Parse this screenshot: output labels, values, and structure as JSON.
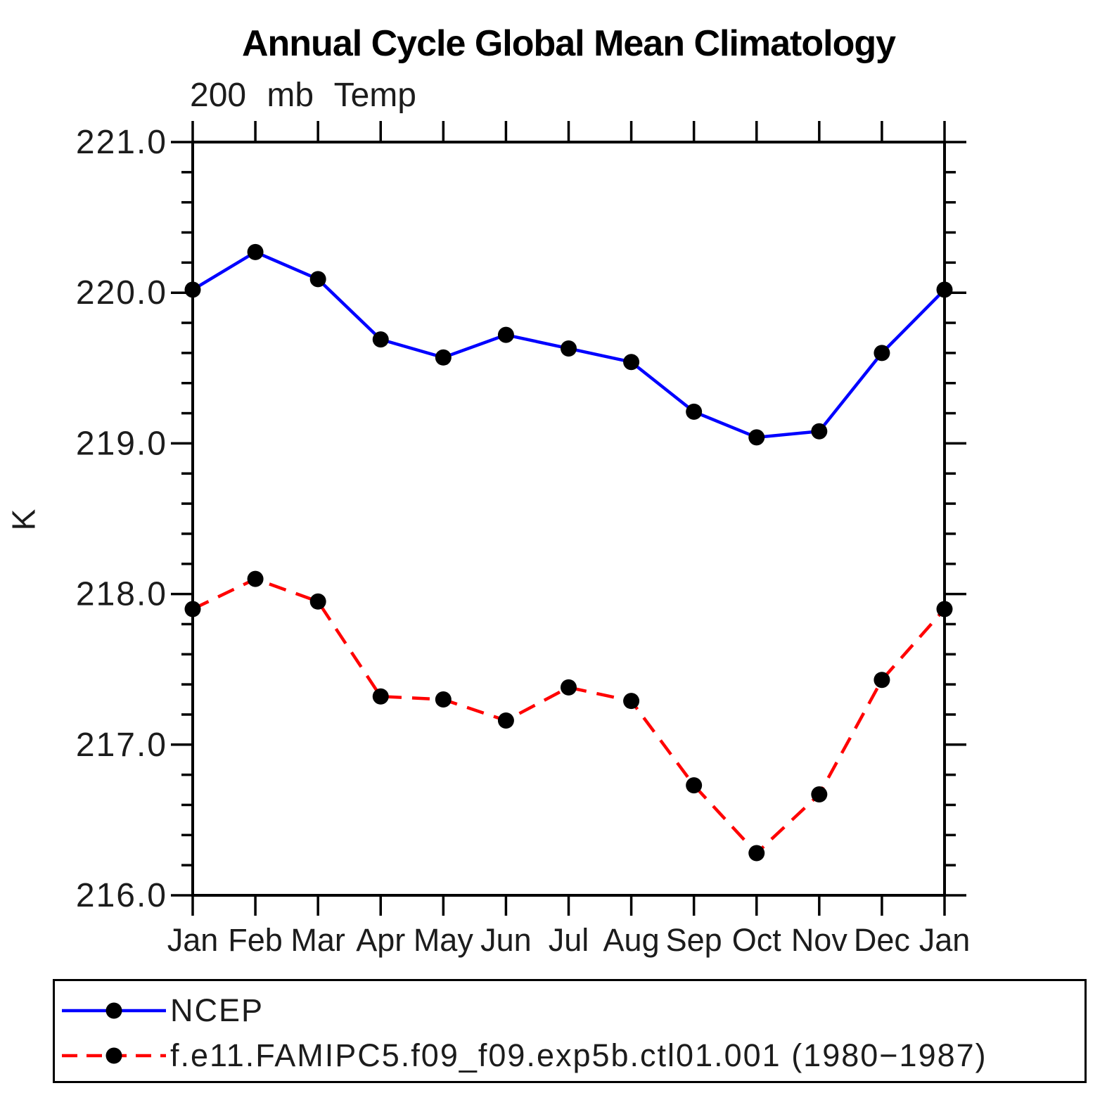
{
  "chart_data": {
    "type": "line",
    "title": "Annual Cycle Global Mean Climatology",
    "subtitle": "200 mb Temp",
    "ylabel": "K",
    "xlabel": "",
    "categories": [
      "Jan",
      "Feb",
      "Mar",
      "Apr",
      "May",
      "Jun",
      "Jul",
      "Aug",
      "Sep",
      "Oct",
      "Nov",
      "Dec",
      "Jan"
    ],
    "ylim": [
      216.0,
      221.0
    ],
    "y_major_ticks": [
      221.0,
      220.0,
      219.0,
      218.0,
      217.0,
      216.0
    ],
    "y_tick_labels": [
      "221.0",
      "220.0",
      "219.0",
      "218.0",
      "217.0",
      "216.0"
    ],
    "y_minor_interval": 0.2,
    "grid": false,
    "legend_position": "bottom",
    "marker": "circle",
    "marker_color": "#000000",
    "axis_color": "#000000",
    "series": [
      {
        "name": "NCEP",
        "color": "#0000ff",
        "line_style": "solid",
        "values": [
          220.02,
          220.27,
          220.09,
          219.69,
          219.57,
          219.72,
          219.63,
          219.54,
          219.21,
          219.04,
          219.08,
          219.6,
          220.02
        ]
      },
      {
        "name": "f.e11.FAMIPC5.f09_f09.exp5b.ctl01.001 (1980−1987)",
        "color": "#ff0000",
        "line_style": "dashed",
        "values": [
          217.9,
          218.1,
          217.95,
          217.32,
          217.3,
          217.16,
          217.38,
          217.29,
          216.73,
          216.28,
          216.67,
          217.43,
          217.9
        ]
      }
    ]
  }
}
